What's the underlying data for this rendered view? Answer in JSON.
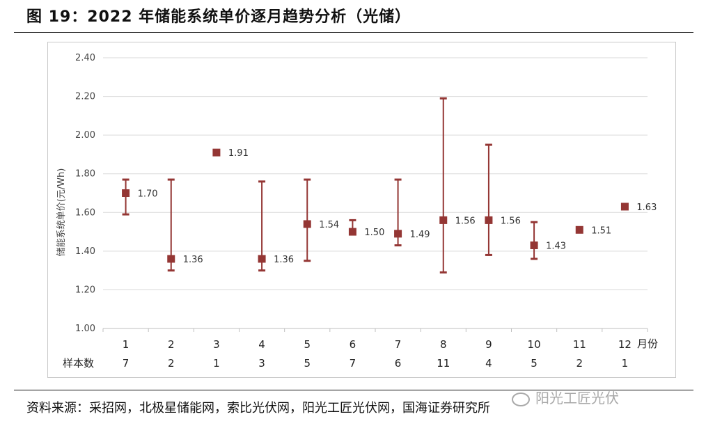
{
  "title": "图 19：2022 年储能系统单价逐月趋势分析（光储）",
  "source": "资料来源：采招网，北极星储能网，索比光伏网，阳光工匠光伏网，国海证券研究所",
  "watermark": "阳光工匠光伏",
  "colors": {
    "marker": "#943634",
    "grid": "#d9d9d9",
    "axis": "#bfbfbf"
  },
  "chart_data": {
    "type": "scatter",
    "ylabel": "储能系统单价(元/Wh)",
    "x_unit_label": "月份",
    "sample_row_label": "样本数",
    "ylim": [
      1.0,
      2.4
    ],
    "yticks": [
      "1.00",
      "1.20",
      "1.40",
      "1.60",
      "1.80",
      "2.00",
      "2.20",
      "2.40"
    ],
    "grid": true,
    "categories": [
      "1",
      "2",
      "3",
      "4",
      "5",
      "6",
      "7",
      "8",
      "9",
      "10",
      "11",
      "12"
    ],
    "sample_counts": [
      "7",
      "2",
      "1",
      "3",
      "5",
      "7",
      "6",
      "11",
      "4",
      "5",
      "2",
      "1"
    ],
    "values": [
      1.7,
      1.36,
      1.91,
      1.36,
      1.54,
      1.5,
      1.49,
      1.56,
      1.56,
      1.43,
      1.51,
      1.63
    ],
    "value_labels": [
      "1.70",
      "1.36",
      "1.91",
      "1.36",
      "1.54",
      "1.50",
      "1.49",
      "1.56",
      "1.56",
      "1.43",
      "1.51",
      "1.63"
    ],
    "max": [
      1.77,
      1.77,
      null,
      1.76,
      1.77,
      1.56,
      1.77,
      2.19,
      1.95,
      1.55,
      null,
      null
    ],
    "min": [
      1.59,
      1.3,
      null,
      1.3,
      1.35,
      1.5,
      1.43,
      1.29,
      1.38,
      1.36,
      null,
      null
    ]
  }
}
